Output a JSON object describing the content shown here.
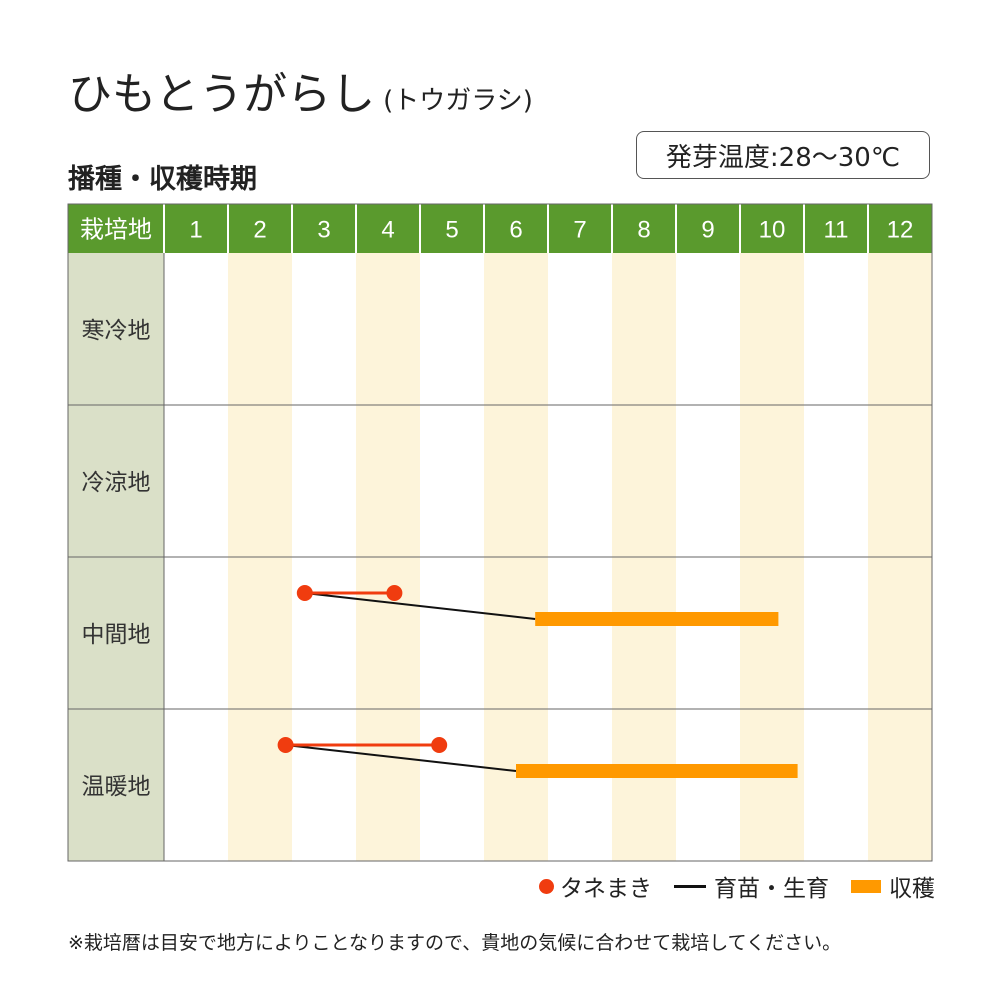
{
  "title": "ひもとうがらし",
  "title_reading": "(トウガラシ)",
  "subtitle": "播種・収穫時期",
  "temperature": "発芽温度:28～30℃",
  "note": "※栽培暦は目安で地方によりことなりますので、貴地の気候に合わせて栽培してください。",
  "legend": {
    "sowing": "タネまき",
    "nursery": "育苗・生育",
    "harvest": "収穫"
  },
  "colors": {
    "header_green": "#5a9a2d",
    "label_column": "#dae0c8",
    "stripe": "#fdf4da",
    "sowing": "#f03c0f",
    "harvest": "#ff9900",
    "nursery_line": "#111111"
  },
  "chart_data": {
    "type": "gantt",
    "header_label": "栽培地",
    "months": [
      "1",
      "2",
      "3",
      "4",
      "5",
      "6",
      "7",
      "8",
      "9",
      "10",
      "11",
      "12"
    ],
    "rows": [
      {
        "region": "寒冷地",
        "sowing": null,
        "harvest": null
      },
      {
        "region": "冷涼地",
        "sowing": null,
        "harvest": null
      },
      {
        "region": "中間地",
        "sowing": [
          3.2,
          4.6
        ],
        "harvest": [
          6.8,
          10.6
        ]
      },
      {
        "region": "温暖地",
        "sowing": [
          2.9,
          5.3
        ],
        "harvest": [
          6.5,
          10.9
        ]
      }
    ]
  }
}
